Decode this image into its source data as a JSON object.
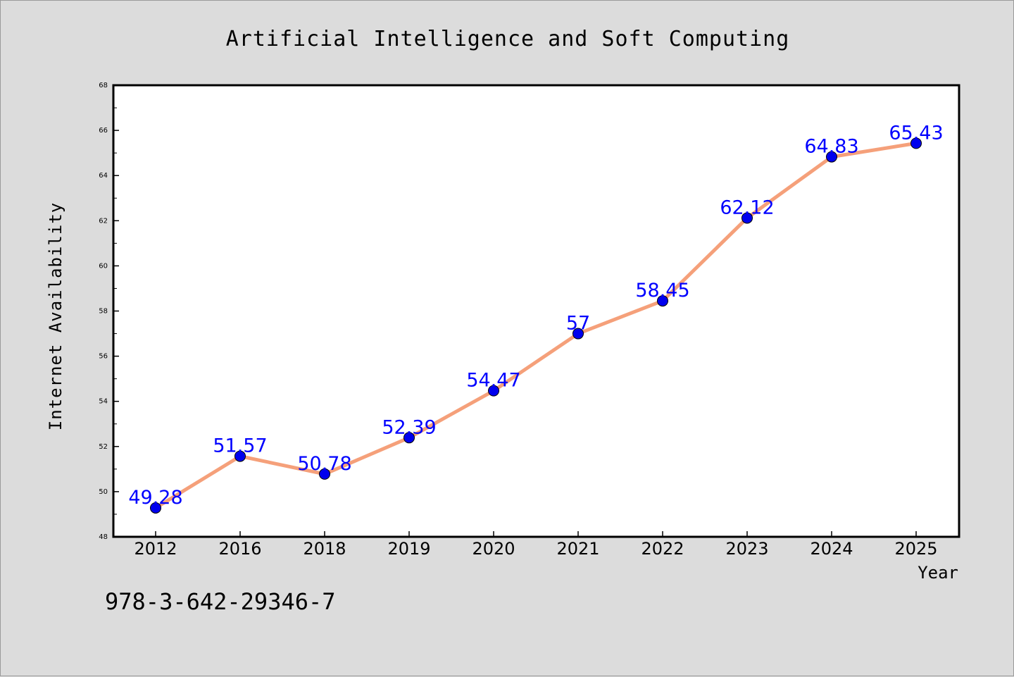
{
  "chart_data": {
    "type": "line",
    "title": "Artificial Intelligence and Soft Computing",
    "xlabel": "Year",
    "ylabel": "Internet Availability",
    "categories": [
      "2012",
      "2016",
      "2018",
      "2019",
      "2020",
      "2021",
      "2022",
      "2023",
      "2024",
      "2025"
    ],
    "series": [
      {
        "values": [
          49.28,
          51.57,
          50.78,
          52.39,
          54.47,
          57,
          58.45,
          62.12,
          64.83,
          65.43
        ],
        "labels": [
          "49.28",
          "51.57",
          "50.78",
          "52.39",
          "54.47",
          "57",
          "58.45",
          "62.12",
          "64.83",
          "65.43"
        ],
        "line_color": "#f5a07a",
        "marker_color": "#0000ee",
        "label_color": "#0000ff"
      }
    ],
    "ylim": [
      48,
      68
    ],
    "yticks": [
      "48",
      "50",
      "52",
      "54",
      "56",
      "58",
      "60",
      "62",
      "64",
      "66",
      "68"
    ],
    "grid": false,
    "legend": "none"
  },
  "annotation": "978-3-642-29346-7",
  "colors": {
    "background": "#dcdcdc",
    "plot_background": "#ffffff",
    "axis": "#000000"
  }
}
